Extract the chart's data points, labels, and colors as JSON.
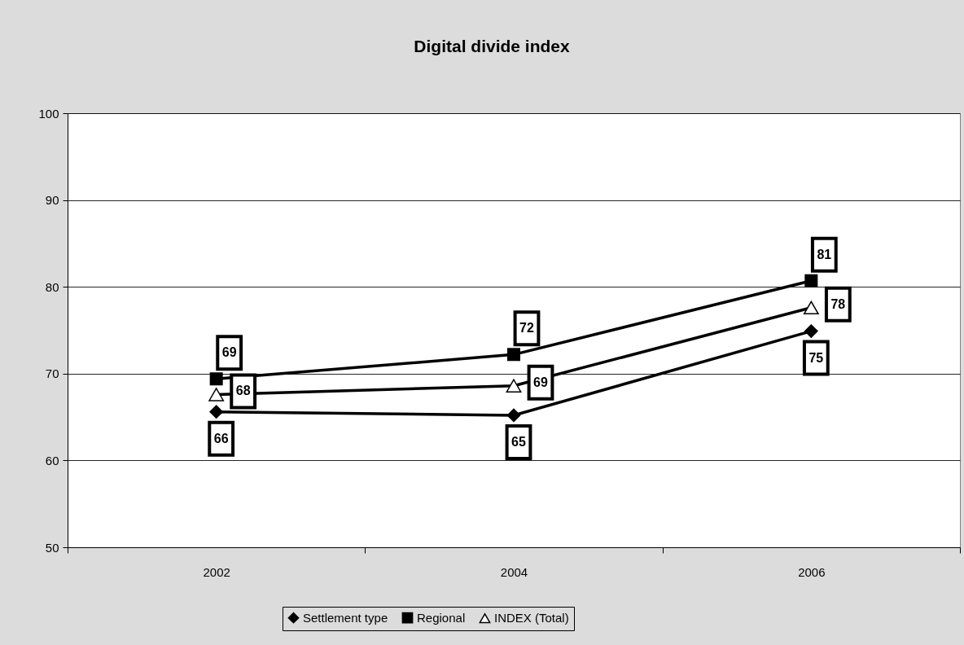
{
  "chart_data": {
    "type": "line",
    "title": "Digital divide index",
    "categories": [
      "2002",
      "2004",
      "2006"
    ],
    "series": [
      {
        "name": "Settlement type",
        "color": "#000000",
        "marker": "diamond",
        "values": [
          65.6,
          65.2,
          74.9
        ],
        "value_labels": [
          "66",
          "65",
          "75"
        ]
      },
      {
        "name": "Regional",
        "color": "#000000",
        "marker": "square",
        "values": [
          69.4,
          72.2,
          80.7
        ],
        "value_labels": [
          "69",
          "72",
          "81"
        ]
      },
      {
        "name": "INDEX (Total)",
        "color": "#000000",
        "marker": "triangle",
        "values": [
          67.6,
          68.6,
          77.6
        ],
        "value_labels": [
          "68",
          "69",
          "78"
        ]
      }
    ],
    "ylim": [
      50,
      100
    ],
    "yticks": [
      50,
      60,
      70,
      80,
      90,
      100
    ],
    "grid": "y",
    "legend": "bottom",
    "line_style": "solid"
  }
}
